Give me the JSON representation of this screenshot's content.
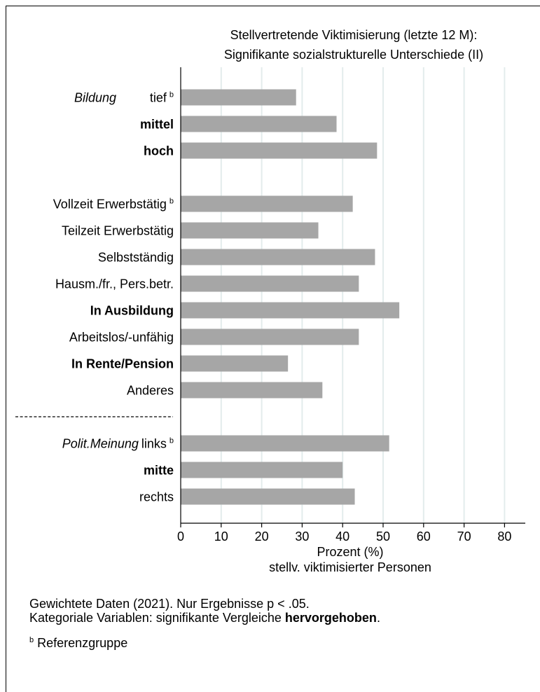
{
  "chart_data": {
    "type": "bar",
    "orientation": "horizontal",
    "title_lines": [
      "Stellvertretende Viktimisierung (letzte 12 M):",
      "Signifikante sozialstrukturelle Unterschiede (II)"
    ],
    "groups": [
      {
        "label": "Bildung",
        "items": [
          {
            "label": "tief",
            "sup": "b",
            "bold": false,
            "value": 28.5
          },
          {
            "label": "mittel",
            "sup": "",
            "bold": true,
            "value": 38.5
          },
          {
            "label": "hoch",
            "sup": "",
            "bold": true,
            "value": 48.5
          }
        ]
      },
      {
        "label": "",
        "items": [
          {
            "label": "Vollzeit Erwerbstätig",
            "sup": "b",
            "bold": false,
            "value": 42.5
          },
          {
            "label": "Teilzeit Erwerbstätig",
            "sup": "",
            "bold": false,
            "value": 34
          },
          {
            "label": "Selbstständig",
            "sup": "",
            "bold": false,
            "value": 48
          },
          {
            "label": "Hausm./fr., Pers.betr.",
            "sup": "",
            "bold": false,
            "value": 44
          },
          {
            "label": "In Ausbildung",
            "sup": "",
            "bold": true,
            "value": 54
          },
          {
            "label": "Arbeitslos/-unfähig",
            "sup": "",
            "bold": false,
            "value": 44
          },
          {
            "label": "In Rente/Pension",
            "sup": "",
            "bold": true,
            "value": 26.5
          },
          {
            "label": "Anderes",
            "sup": "",
            "bold": false,
            "value": 35
          }
        ]
      },
      {
        "label": "Polit.Meinung",
        "items": [
          {
            "label": "links",
            "sup": "b",
            "bold": false,
            "value": 51.5
          },
          {
            "label": "mitte",
            "sup": "",
            "bold": true,
            "value": 40
          },
          {
            "label": "rechts",
            "sup": "",
            "bold": false,
            "value": 43
          }
        ]
      }
    ],
    "x_ticks": [
      0,
      10,
      20,
      30,
      40,
      50,
      60,
      70,
      80
    ],
    "xlim": [
      0,
      85
    ],
    "xlabel_lines": [
      "Prozent (%)",
      "stellv. viktimisierter Personen"
    ],
    "bar_color": "#a6a6a6",
    "grid": true,
    "grid_color": "#e3ecec"
  },
  "footnotes": {
    "line1": "Gewichtete Daten (2021). Nur Ergebnisse p < .05.",
    "line2_prefix": "Kategoriale Variablen: signifikante Vergleiche ",
    "line2_bold": "hervorgehoben",
    "line2_suffix": ".",
    "ref_sup": "b",
    "ref_text": " Referenzgruppe"
  }
}
